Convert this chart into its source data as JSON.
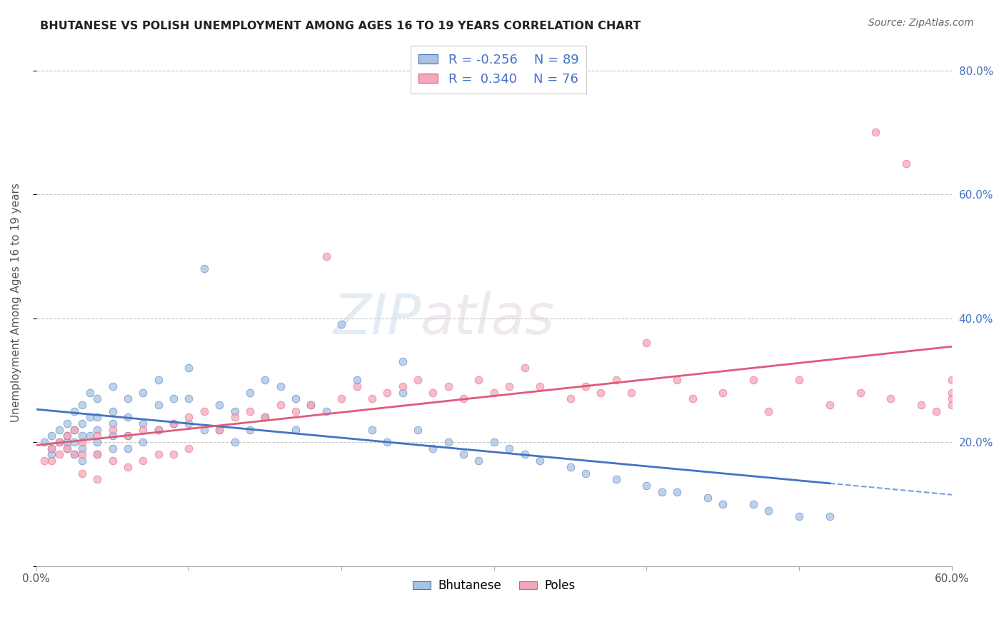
{
  "title": "BHUTANESE VS POLISH UNEMPLOYMENT AMONG AGES 16 TO 19 YEARS CORRELATION CHART",
  "source": "Source: ZipAtlas.com",
  "ylabel": "Unemployment Among Ages 16 to 19 years",
  "xlim": [
    0.0,
    0.6
  ],
  "ylim": [
    0.0,
    0.85
  ],
  "color_blue": "#a8c4e0",
  "color_pink": "#f4a7b9",
  "line_color_blue": "#4472c4",
  "line_color_pink": "#e05a7a",
  "legend_text_color": "#4472c4",
  "background_color": "#ffffff",
  "grid_color": "#c8c8c8",
  "bhutanese_x": [
    0.005,
    0.01,
    0.01,
    0.01,
    0.015,
    0.015,
    0.02,
    0.02,
    0.02,
    0.02,
    0.025,
    0.025,
    0.025,
    0.025,
    0.03,
    0.03,
    0.03,
    0.03,
    0.03,
    0.035,
    0.035,
    0.035,
    0.04,
    0.04,
    0.04,
    0.04,
    0.04,
    0.05,
    0.05,
    0.05,
    0.05,
    0.05,
    0.06,
    0.06,
    0.06,
    0.06,
    0.07,
    0.07,
    0.07,
    0.08,
    0.08,
    0.08,
    0.09,
    0.09,
    0.1,
    0.1,
    0.1,
    0.11,
    0.11,
    0.12,
    0.12,
    0.13,
    0.13,
    0.14,
    0.14,
    0.15,
    0.15,
    0.16,
    0.17,
    0.17,
    0.18,
    0.19,
    0.2,
    0.21,
    0.22,
    0.23,
    0.24,
    0.24,
    0.25,
    0.26,
    0.27,
    0.28,
    0.29,
    0.3,
    0.31,
    0.32,
    0.33,
    0.35,
    0.36,
    0.38,
    0.4,
    0.41,
    0.42,
    0.44,
    0.45,
    0.47,
    0.48,
    0.5,
    0.52
  ],
  "bhutanese_y": [
    0.2,
    0.21,
    0.19,
    0.18,
    0.22,
    0.2,
    0.23,
    0.21,
    0.2,
    0.19,
    0.25,
    0.22,
    0.2,
    0.18,
    0.26,
    0.23,
    0.21,
    0.19,
    0.17,
    0.28,
    0.24,
    0.21,
    0.27,
    0.24,
    0.22,
    0.2,
    0.18,
    0.29,
    0.25,
    0.23,
    0.21,
    0.19,
    0.27,
    0.24,
    0.21,
    0.19,
    0.28,
    0.23,
    0.2,
    0.3,
    0.26,
    0.22,
    0.27,
    0.23,
    0.32,
    0.27,
    0.23,
    0.48,
    0.22,
    0.26,
    0.22,
    0.25,
    0.2,
    0.28,
    0.22,
    0.3,
    0.24,
    0.29,
    0.27,
    0.22,
    0.26,
    0.25,
    0.39,
    0.3,
    0.22,
    0.2,
    0.33,
    0.28,
    0.22,
    0.19,
    0.2,
    0.18,
    0.17,
    0.2,
    0.19,
    0.18,
    0.17,
    0.16,
    0.15,
    0.14,
    0.13,
    0.12,
    0.12,
    0.11,
    0.1,
    0.1,
    0.09,
    0.08,
    0.08
  ],
  "poles_x": [
    0.005,
    0.01,
    0.01,
    0.015,
    0.015,
    0.02,
    0.02,
    0.025,
    0.025,
    0.03,
    0.03,
    0.03,
    0.04,
    0.04,
    0.04,
    0.05,
    0.05,
    0.06,
    0.06,
    0.07,
    0.07,
    0.08,
    0.08,
    0.09,
    0.09,
    0.1,
    0.1,
    0.11,
    0.12,
    0.13,
    0.14,
    0.15,
    0.16,
    0.17,
    0.18,
    0.19,
    0.2,
    0.21,
    0.22,
    0.23,
    0.24,
    0.25,
    0.26,
    0.27,
    0.28,
    0.29,
    0.3,
    0.31,
    0.32,
    0.33,
    0.35,
    0.36,
    0.37,
    0.38,
    0.39,
    0.4,
    0.42,
    0.43,
    0.45,
    0.47,
    0.48,
    0.5,
    0.52,
    0.54,
    0.55,
    0.56,
    0.57,
    0.58,
    0.59,
    0.6,
    0.6,
    0.6,
    0.6
  ],
  "poles_y": [
    0.17,
    0.19,
    0.17,
    0.2,
    0.18,
    0.21,
    0.19,
    0.22,
    0.18,
    0.2,
    0.18,
    0.15,
    0.21,
    0.18,
    0.14,
    0.22,
    0.17,
    0.21,
    0.16,
    0.22,
    0.17,
    0.22,
    0.18,
    0.23,
    0.18,
    0.24,
    0.19,
    0.25,
    0.22,
    0.24,
    0.25,
    0.24,
    0.26,
    0.25,
    0.26,
    0.5,
    0.27,
    0.29,
    0.27,
    0.28,
    0.29,
    0.3,
    0.28,
    0.29,
    0.27,
    0.3,
    0.28,
    0.29,
    0.32,
    0.29,
    0.27,
    0.29,
    0.28,
    0.3,
    0.28,
    0.36,
    0.3,
    0.27,
    0.28,
    0.3,
    0.25,
    0.3,
    0.26,
    0.28,
    0.7,
    0.27,
    0.65,
    0.26,
    0.25,
    0.28,
    0.27,
    0.26,
    0.3
  ]
}
